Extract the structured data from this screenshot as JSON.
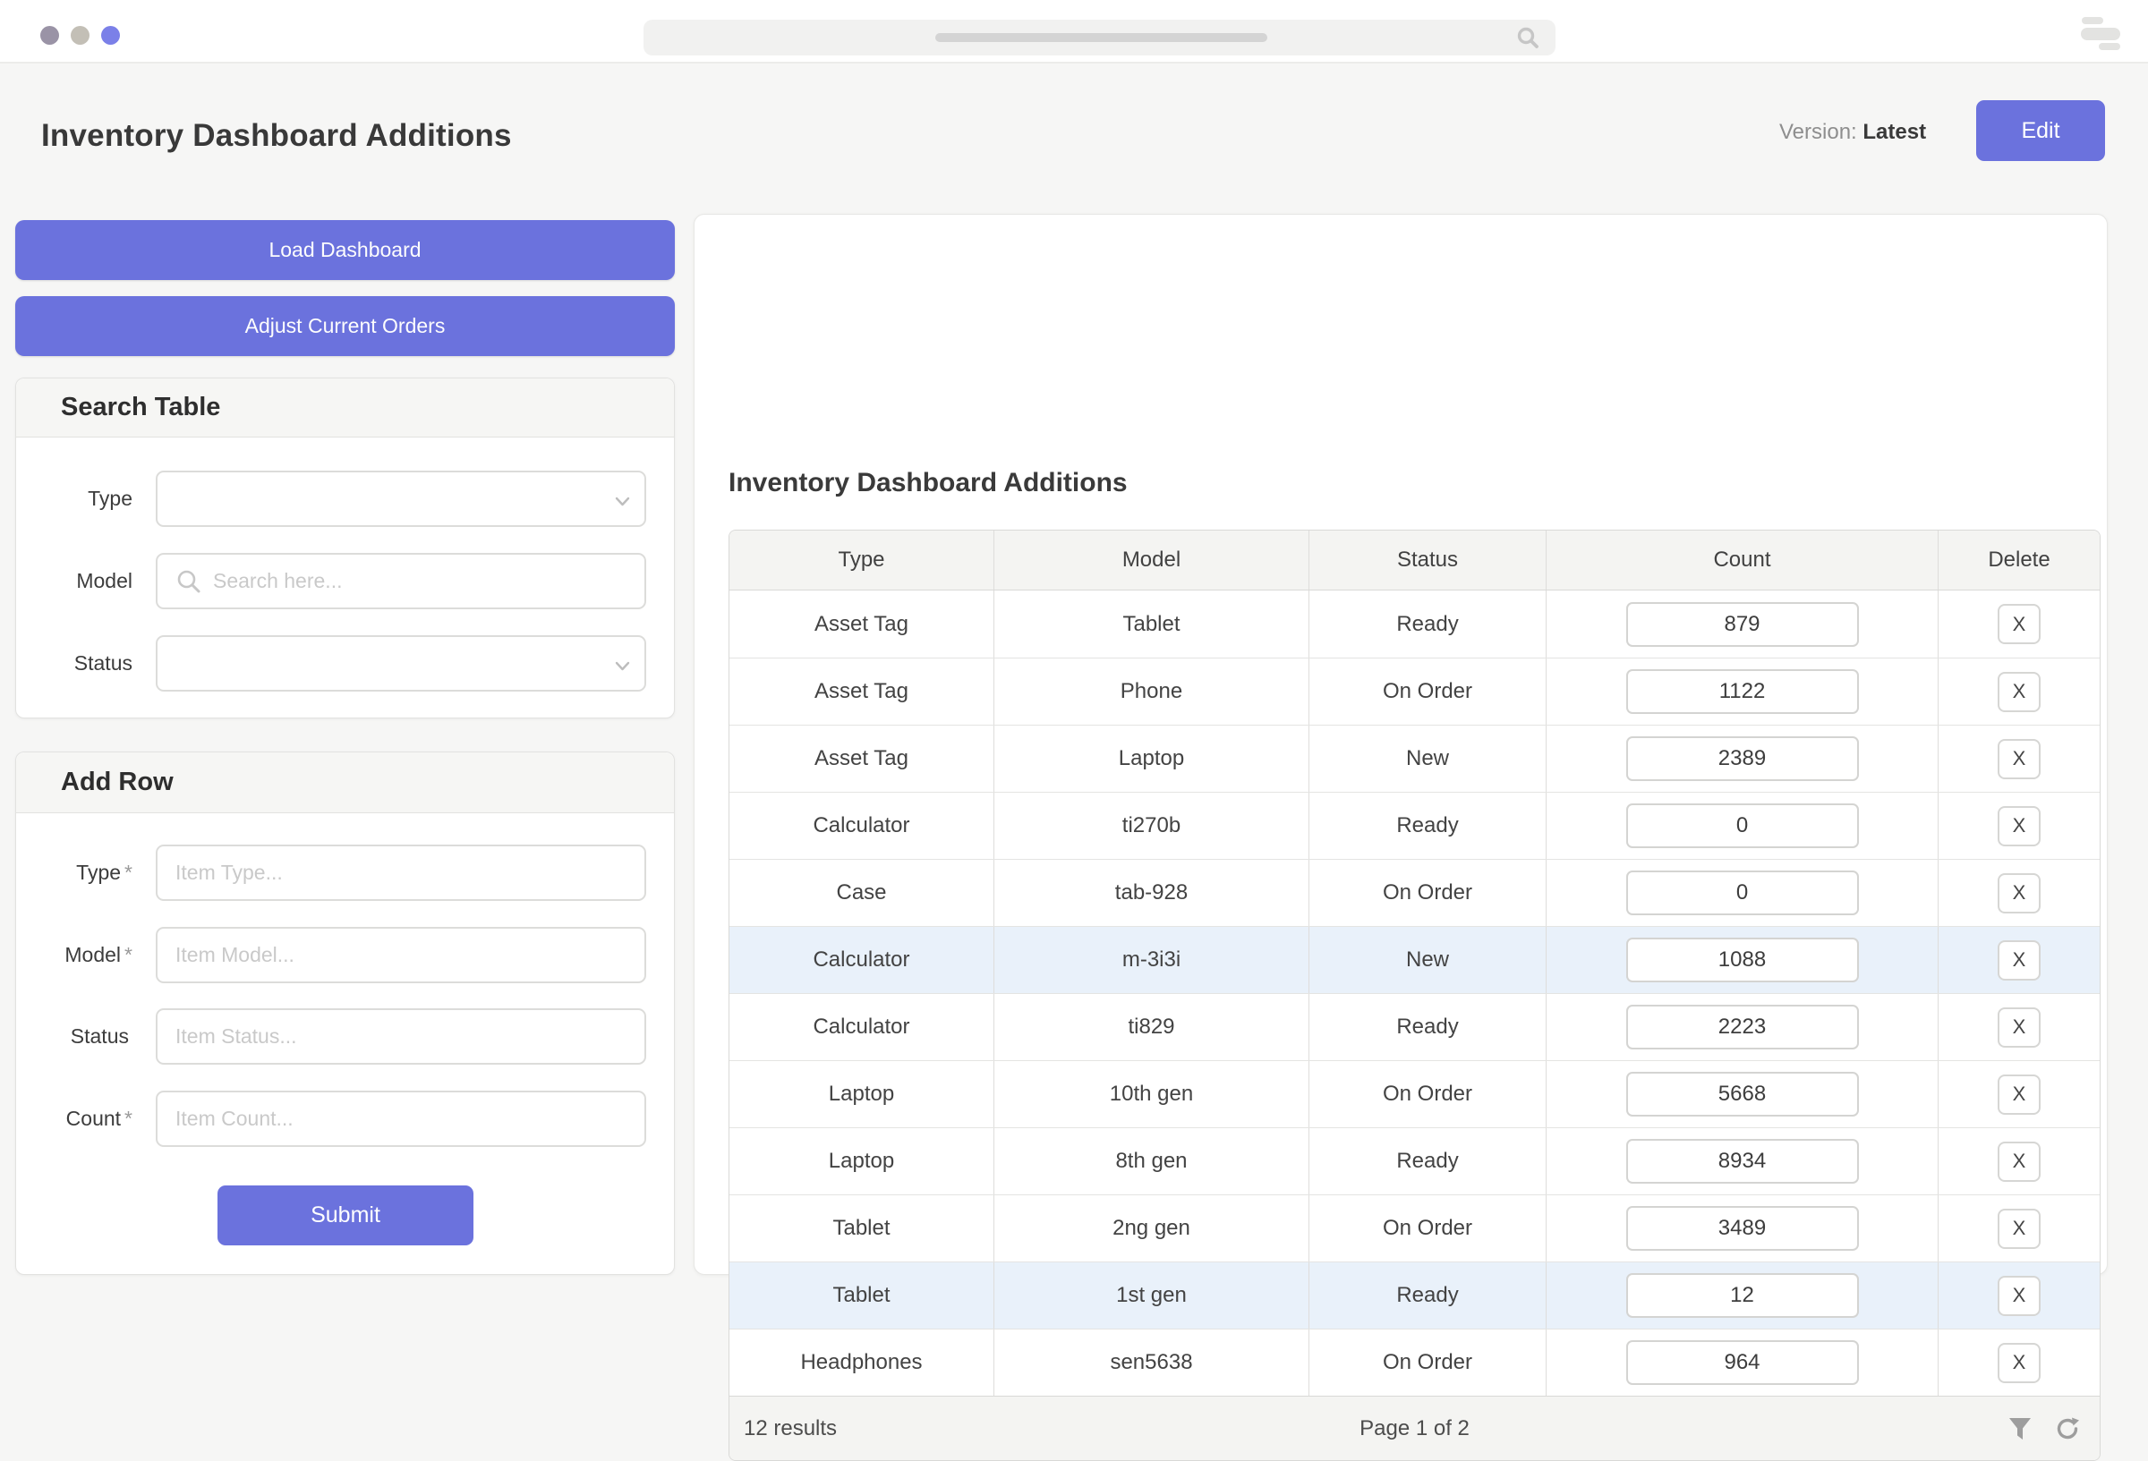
{
  "colors": {
    "accent": "#6b72dd",
    "row_highlight": "#e9f1fa",
    "traffic_dots": [
      "#9a93a6",
      "#c3bfb6",
      "#7b80e8"
    ]
  },
  "topbar": {
    "search_placeholder_bar": "",
    "icons": [
      "search-icon",
      "menu-icon"
    ]
  },
  "header": {
    "title": "Inventory Dashboard Additions",
    "version_label": "Version:",
    "version_value": "Latest",
    "edit_button": "Edit"
  },
  "sidebar": {
    "load_button": "Load Dashboard",
    "adjust_button": "Adjust Current Orders",
    "search_panel": {
      "title": "Search Table",
      "fields": [
        {
          "label": "Type",
          "control": "select",
          "value": ""
        },
        {
          "label": "Model",
          "control": "search",
          "placeholder": "Search here..."
        },
        {
          "label": "Status",
          "control": "select",
          "value": ""
        }
      ]
    },
    "add_panel": {
      "title": "Add Row",
      "fields": [
        {
          "label": "Type",
          "star": "*",
          "placeholder": "Item Type..."
        },
        {
          "label": "Model",
          "star": "*",
          "placeholder": "Item Model..."
        },
        {
          "label": "Status",
          "star": "",
          "placeholder": "Item Status..."
        },
        {
          "label": "Count",
          "star": "*",
          "placeholder": "Item Count..."
        }
      ],
      "submit_label": "Submit"
    }
  },
  "main": {
    "title": "Inventory Dashboard Additions",
    "table": {
      "columns": [
        "Type",
        "Model",
        "Status",
        "Count",
        "Delete"
      ],
      "delete_label": "X",
      "rows": [
        {
          "type": "Asset Tag",
          "model": "Tablet",
          "status": "Ready",
          "count": "879",
          "highlighted": false
        },
        {
          "type": "Asset Tag",
          "model": "Phone",
          "status": "On Order",
          "count": "1122",
          "highlighted": false
        },
        {
          "type": "Asset Tag",
          "model": "Laptop",
          "status": "New",
          "count": "2389",
          "highlighted": false
        },
        {
          "type": "Calculator",
          "model": "ti270b",
          "status": "Ready",
          "count": "0",
          "highlighted": false
        },
        {
          "type": "Case",
          "model": "tab-928",
          "status": "On Order",
          "count": "0",
          "highlighted": false
        },
        {
          "type": "Calculator",
          "model": "m-3i3i",
          "status": "New",
          "count": "1088",
          "highlighted": true
        },
        {
          "type": "Calculator",
          "model": "ti829",
          "status": "Ready",
          "count": "2223",
          "highlighted": false
        },
        {
          "type": "Laptop",
          "model": "10th gen",
          "status": "On Order",
          "count": "5668",
          "highlighted": false
        },
        {
          "type": "Laptop",
          "model": "8th gen",
          "status": "Ready",
          "count": "8934",
          "highlighted": false
        },
        {
          "type": "Tablet",
          "model": "2ng gen",
          "status": "On Order",
          "count": "3489",
          "highlighted": false
        },
        {
          "type": "Tablet",
          "model": "1st gen",
          "status": "Ready",
          "count": "12",
          "highlighted": true
        },
        {
          "type": "Headphones",
          "model": "sen5638",
          "status": "On Order",
          "count": "964",
          "highlighted": false
        }
      ]
    },
    "footer": {
      "results": "12 results",
      "page": "Page 1 of 2"
    }
  }
}
